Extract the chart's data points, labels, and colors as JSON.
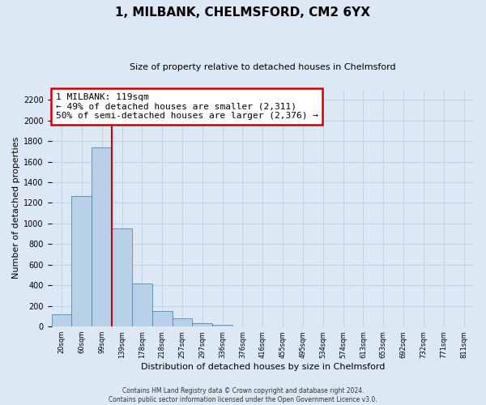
{
  "title": "1, MILBANK, CHELMSFORD, CM2 6YX",
  "subtitle": "Size of property relative to detached houses in Chelmsford",
  "xlabel": "Distribution of detached houses by size in Chelmsford",
  "ylabel": "Number of detached properties",
  "footer_lines": [
    "Contains HM Land Registry data © Crown copyright and database right 2024.",
    "Contains public sector information licensed under the Open Government Licence v3.0."
  ],
  "bar_labels": [
    "20sqm",
    "60sqm",
    "99sqm",
    "139sqm",
    "178sqm",
    "218sqm",
    "257sqm",
    "297sqm",
    "336sqm",
    "376sqm",
    "416sqm",
    "455sqm",
    "495sqm",
    "534sqm",
    "574sqm",
    "613sqm",
    "653sqm",
    "692sqm",
    "732sqm",
    "771sqm",
    "811sqm"
  ],
  "bar_values": [
    120,
    1270,
    1740,
    950,
    415,
    150,
    78,
    35,
    20,
    0,
    0,
    0,
    0,
    0,
    0,
    0,
    0,
    0,
    0,
    0,
    0
  ],
  "bar_color": "#b8d0e8",
  "bar_edge_color": "#5588aa",
  "grid_color": "#c0d4e8",
  "background_color": "#dce8f4",
  "vline_color": "#cc0000",
  "annotation_text": "1 MILBANK: 119sqm\n← 49% of detached houses are smaller (2,311)\n50% of semi-detached houses are larger (2,376) →",
  "annotation_box_color": "#ffffff",
  "annotation_box_edge_color": "#cc0000",
  "ylim": [
    0,
    2300
  ],
  "yticks": [
    0,
    200,
    400,
    600,
    800,
    1000,
    1200,
    1400,
    1600,
    1800,
    2000,
    2200
  ],
  "title_fontsize": 11,
  "subtitle_fontsize": 8,
  "ylabel_fontsize": 8,
  "xlabel_fontsize": 8,
  "tick_fontsize": 7,
  "xtick_fontsize": 6,
  "footer_fontsize": 5.5,
  "annot_fontsize": 8
}
